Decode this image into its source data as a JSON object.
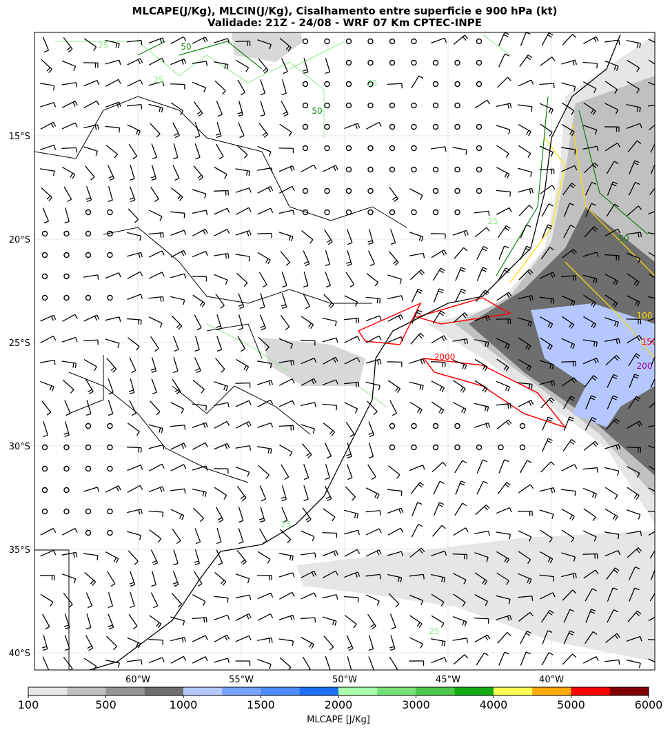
{
  "map": {
    "title": [
      "MLCAPE(J/Kg), MLCIN(J/Kg), Cisalhamento entre superficie e 900 hPa (kt)",
      "Validade: 21Z - 24/08 - WRF 07 Km CPTEC-INPE"
    ],
    "latitudes": [
      {
        "value": -15,
        "label": "15°S"
      },
      {
        "value": -20,
        "label": "20°S"
      },
      {
        "value": -25,
        "label": "25°S"
      },
      {
        "value": -30,
        "label": "30°S"
      },
      {
        "value": -35,
        "label": "35°S"
      },
      {
        "value": -40,
        "label": "40°S"
      }
    ],
    "longitudes": [
      {
        "value": -60,
        "label": "60°W"
      },
      {
        "value": -55,
        "label": "55°W"
      },
      {
        "value": -50,
        "label": "50°W"
      },
      {
        "value": -45,
        "label": "45°W"
      },
      {
        "value": -40,
        "label": "40°W"
      }
    ],
    "contour_labels": [
      "25",
      "50",
      "25",
      "50",
      "25",
      "25",
      "50",
      "100",
      "150",
      "200",
      "2000",
      "25",
      "25"
    ],
    "colorbar": {
      "label": "MLCAPE [J/Kg]",
      "ticks": [
        100,
        500,
        1000,
        1500,
        2000,
        3000,
        4000,
        5000,
        6000
      ],
      "colors": [
        "#e6e6e6",
        "#c0c0c0",
        "#969696",
        "#6e6e6e",
        "#b4c8ff",
        "#78a0ff",
        "#4a8cff",
        "#1e6eff",
        "#aaffaa",
        "#78e078",
        "#4cc84c",
        "#14aa14",
        "#ffff55",
        "#ffaa00",
        "#ff0000",
        "#800000"
      ]
    }
  }
}
